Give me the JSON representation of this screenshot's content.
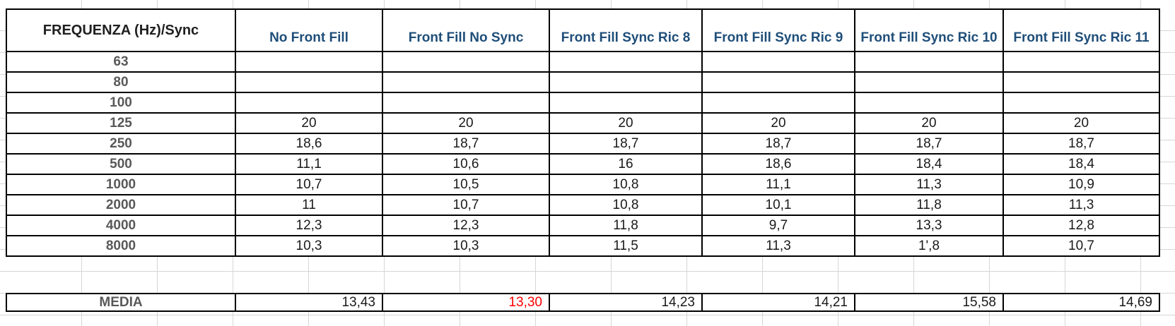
{
  "table": {
    "corner_header": "FREQUENZA (Hz)/Sync",
    "columns": [
      "No Front Fill",
      "Front Fill No Sync",
      "Front Fill Sync Ric 8",
      "Front Fill Sync Ric 9",
      "Front Fill Sync Ric 10",
      "Front Fill Sync Ric 11"
    ],
    "rows": [
      {
        "freq": "63",
        "values": [
          "",
          "",
          "",
          "",
          "",
          ""
        ]
      },
      {
        "freq": "80",
        "values": [
          "",
          "",
          "",
          "",
          "",
          ""
        ]
      },
      {
        "freq": "100",
        "values": [
          "",
          "",
          "",
          "",
          "",
          ""
        ]
      },
      {
        "freq": "125",
        "values": [
          "20",
          "20",
          "20",
          "20",
          "20",
          "20"
        ]
      },
      {
        "freq": "250",
        "values": [
          "18,6",
          "18,7",
          "18,7",
          "18,7",
          "18,7",
          "18,7"
        ]
      },
      {
        "freq": "500",
        "values": [
          "11,1",
          "10,6",
          "16",
          "18,6",
          "18,4",
          "18,4"
        ]
      },
      {
        "freq": "1000",
        "values": [
          "10,7",
          "10,5",
          "10,8",
          "11,1",
          "11,3",
          "10,9"
        ]
      },
      {
        "freq": "2000",
        "values": [
          "11",
          "10,7",
          "10,8",
          "10,1",
          "11,8",
          "11,3"
        ]
      },
      {
        "freq": "4000",
        "values": [
          "12,3",
          "12,3",
          "11,8",
          "9,7",
          "13,3",
          "12,8"
        ]
      },
      {
        "freq": "8000",
        "values": [
          "10,3",
          "10,3",
          "11,5",
          "11,3",
          "1',8",
          "10,7"
        ]
      }
    ],
    "media_row": {
      "label": "MEDIA",
      "values": [
        "13,43",
        "13,30",
        "14,23",
        "14,21",
        "15,58",
        "14,69"
      ],
      "highlight_index": 1,
      "highlight_color": "#ff0000"
    }
  },
  "colors": {
    "header_blue": "#1f4e79",
    "label_gray": "#595959",
    "value_black": "#1a1a1a",
    "border_black": "#000000",
    "gridline_gray": "#d6d6d6",
    "media_highlight_red": "#ff0000"
  }
}
